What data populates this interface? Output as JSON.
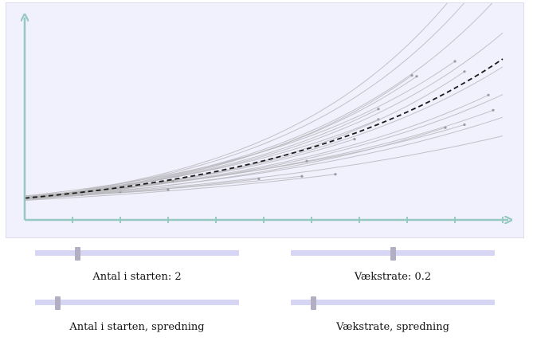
{
  "chart_data": {
    "type": "line",
    "title": "",
    "xlabel": "",
    "ylabel": "",
    "x_ticks": 10,
    "xlim": [
      0,
      10
    ],
    "ylim": [
      0,
      18
    ],
    "mean_curve": {
      "start": 2,
      "rate": 0.2,
      "style": "dashed"
    },
    "samples": [
      {
        "start": 2.0,
        "rate": 0.22,
        "end_t": 7.4
      },
      {
        "start": 2.1,
        "rate": 0.2,
        "end_t": 7.4
      },
      {
        "start": 1.9,
        "rate": 0.24,
        "end_t": 8.1
      },
      {
        "start": 2.0,
        "rate": 0.23,
        "end_t": 8.2
      },
      {
        "start": 2.2,
        "rate": 0.21,
        "end_t": 9.0
      },
      {
        "start": 1.8,
        "rate": 0.22,
        "end_t": 9.2
      },
      {
        "start": 2.0,
        "rate": 0.18,
        "end_t": 9.7
      },
      {
        "start": 2.1,
        "rate": 0.16,
        "end_t": 9.8
      },
      {
        "start": 1.9,
        "rate": 0.17,
        "end_t": 8.8
      },
      {
        "start": 2.0,
        "rate": 0.19,
        "end_t": 6.9
      },
      {
        "start": 2.2,
        "rate": 0.15,
        "end_t": 9.2
      },
      {
        "start": 1.8,
        "rate": 0.13,
        "end_t": 6.5
      },
      {
        "start": 2.0,
        "rate": 0.12,
        "end_t": 5.8
      },
      {
        "start": 2.1,
        "rate": 0.16,
        "end_t": 5.9
      },
      {
        "start": 1.9,
        "rate": 0.14,
        "end_t": 4.9
      },
      {
        "start": 2.0,
        "rate": 0.11,
        "end_t": 3.0
      },
      {
        "start": 2.1,
        "rate": 0.17,
        "end_t": 3.1
      },
      {
        "start": 1.9,
        "rate": 0.15,
        "end_t": 2.0
      },
      {
        "start": 2.0,
        "rate": 0.13,
        "end_t": 1.2
      },
      {
        "start": 2.0,
        "rate": 0.26,
        "end_t": 10.0
      },
      {
        "start": 2.0,
        "rate": 0.25,
        "end_t": 10.0
      },
      {
        "start": 2.0,
        "rate": 0.235,
        "end_t": 10.0
      },
      {
        "start": 2.0,
        "rate": 0.215,
        "end_t": 10.0
      },
      {
        "start": 2.0,
        "rate": 0.195,
        "end_t": 10.0
      },
      {
        "start": 2.0,
        "rate": 0.175,
        "end_t": 10.0
      },
      {
        "start": 2.0,
        "rate": 0.155,
        "end_t": 10.0
      },
      {
        "start": 2.0,
        "rate": 0.135,
        "end_t": 10.0
      }
    ],
    "colors": {
      "axis": "#97c8c2",
      "sample_line": "#b8b8bc",
      "sample_dot": "#9a9aa0",
      "mean_line": "#1a1a1a"
    }
  },
  "controls": {
    "start_count": {
      "label": "Antal i starten: 2",
      "value": 2,
      "min": 0,
      "max": 10
    },
    "growth_rate": {
      "label": "Vækstrate: 0.2",
      "value": 0.2,
      "min": 0,
      "max": 0.4
    },
    "start_spread": {
      "label": "Antal i starten, spredning",
      "value": 0.1,
      "min": 0,
      "max": 1
    },
    "rate_spread": {
      "label": "Vækstrate, spredning",
      "value": 0.1,
      "min": 0,
      "max": 1
    }
  }
}
